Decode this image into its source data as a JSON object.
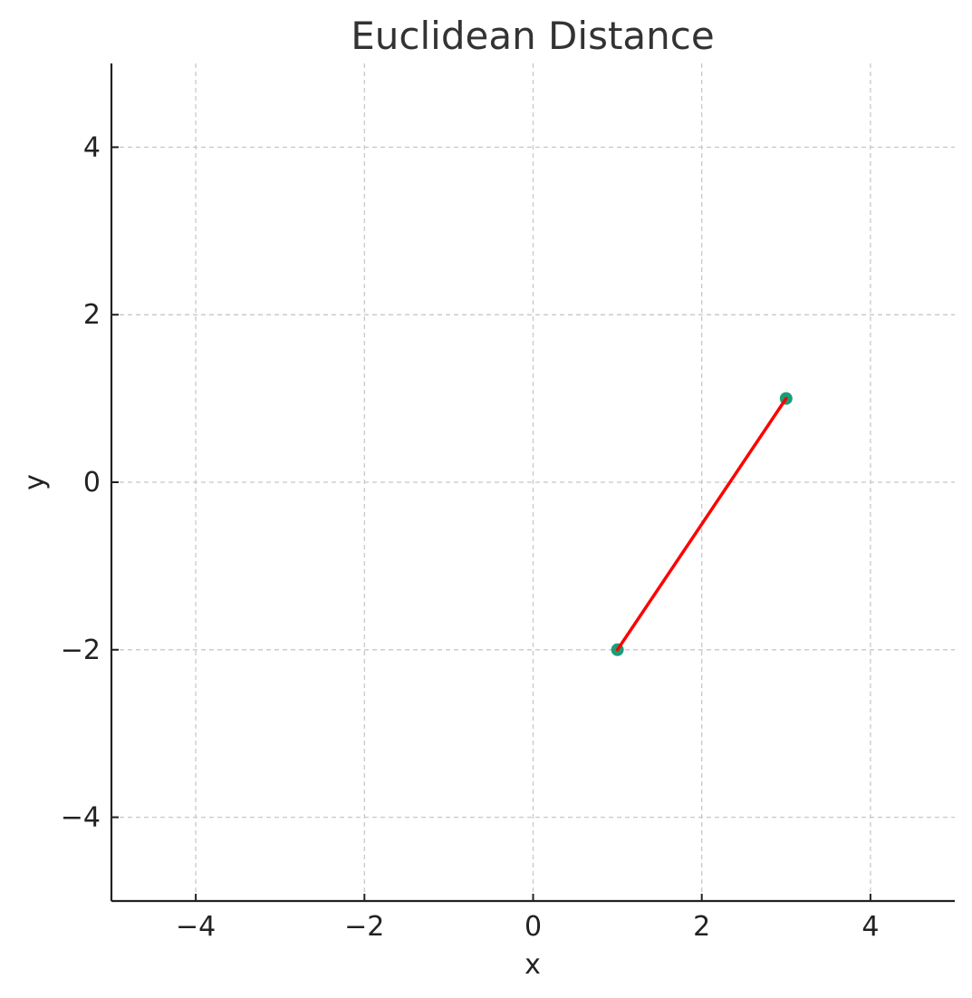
{
  "chart_data": {
    "type": "scatter",
    "title": "Euclidean Distance",
    "xlabel": "x",
    "ylabel": "y",
    "xlim": [
      -5,
      5
    ],
    "ylim": [
      -5,
      5
    ],
    "xticks": [
      -4,
      -2,
      0,
      2,
      4
    ],
    "yticks": [
      -4,
      -2,
      0,
      2,
      4
    ],
    "xtick_labels": [
      "−4",
      "−2",
      "0",
      "2",
      "4"
    ],
    "ytick_labels": [
      "−4",
      "−2",
      "0",
      "2",
      "4"
    ],
    "grid": true,
    "series": [
      {
        "kind": "points",
        "x": [
          1,
          3
        ],
        "y": [
          -2,
          1
        ],
        "color": "#1a9e77"
      },
      {
        "kind": "line",
        "x": [
          1,
          3
        ],
        "y": [
          -2,
          1
        ],
        "color": "#ff0000"
      }
    ]
  }
}
